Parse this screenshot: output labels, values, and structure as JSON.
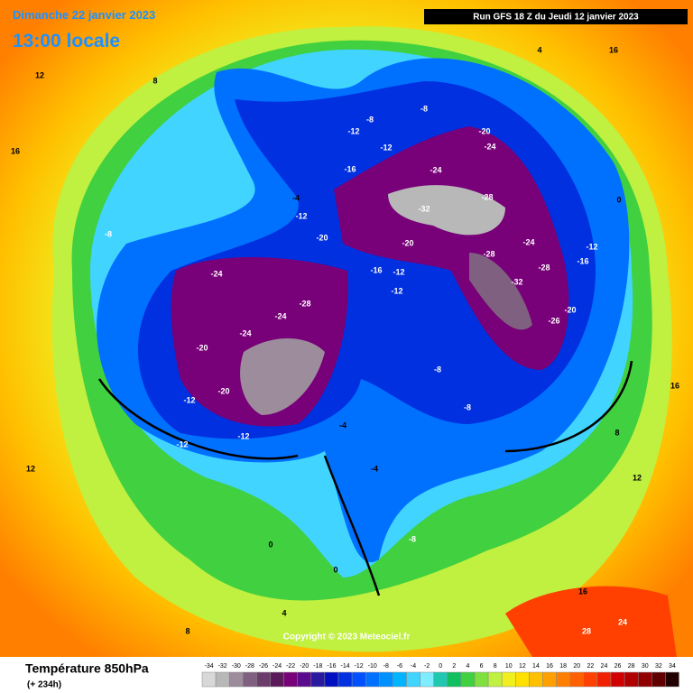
{
  "header": {
    "date": "Dimanche 22 janvier 2023",
    "time": "13:00 locale",
    "run": "Run GFS 18 Z du Jeudi 12 janvier 2023"
  },
  "copyright": "Copyright © 2023 Meteociel.fr",
  "legend": {
    "title": "Température 850hPa",
    "subtitle": "(+ 234h)",
    "stops": [
      {
        "value": -34,
        "color": "#d8d8d8"
      },
      {
        "value": -32,
        "color": "#b8b8b8"
      },
      {
        "value": -30,
        "color": "#9c8c9c"
      },
      {
        "value": -28,
        "color": "#806080"
      },
      {
        "value": -26,
        "color": "#6c3c6c"
      },
      {
        "value": -24,
        "color": "#5a1a5a"
      },
      {
        "value": -22,
        "color": "#780078"
      },
      {
        "value": -20,
        "color": "#5a0a8c"
      },
      {
        "value": -18,
        "color": "#2a1aa0"
      },
      {
        "value": -16,
        "color": "#0010c0"
      },
      {
        "value": -14,
        "color": "#0030e0"
      },
      {
        "value": -12,
        "color": "#0050ff"
      },
      {
        "value": -10,
        "color": "#0070ff"
      },
      {
        "value": -8,
        "color": "#0090ff"
      },
      {
        "value": -6,
        "color": "#00b4ff"
      },
      {
        "value": -4,
        "color": "#40d4ff"
      },
      {
        "value": -2,
        "color": "#80ecff"
      },
      {
        "value": 0,
        "color": "#20c8b0"
      },
      {
        "value": 2,
        "color": "#10c060"
      },
      {
        "value": 4,
        "color": "#40d040"
      },
      {
        "value": 6,
        "color": "#80e040"
      },
      {
        "value": 8,
        "color": "#c0f040"
      },
      {
        "value": 10,
        "color": "#f0f020"
      },
      {
        "value": 12,
        "color": "#ffe000"
      },
      {
        "value": 14,
        "color": "#ffc000"
      },
      {
        "value": 16,
        "color": "#ffa000"
      },
      {
        "value": 18,
        "color": "#ff8000"
      },
      {
        "value": 20,
        "color": "#ff6000"
      },
      {
        "value": 22,
        "color": "#ff4000"
      },
      {
        "value": 24,
        "color": "#f02000"
      },
      {
        "value": 26,
        "color": "#d00000"
      },
      {
        "value": 28,
        "color": "#b00000"
      },
      {
        "value": 30,
        "color": "#900000"
      },
      {
        "value": 32,
        "color": "#600000"
      },
      {
        "value": 34,
        "color": "#200000"
      }
    ]
  },
  "contour_labels": [
    -8,
    -8,
    -12,
    -12,
    -16,
    -20,
    -24,
    -24,
    -20,
    -20,
    -24,
    -24,
    -24,
    -28,
    -20,
    -20,
    -12,
    -12,
    -12,
    -16,
    -12,
    -12,
    -28,
    -32,
    -28,
    -24,
    -28,
    -32,
    -26,
    -20,
    -16,
    -12,
    -8,
    -8,
    -4,
    -4,
    -8,
    0,
    0,
    4,
    8,
    12,
    16,
    12,
    8,
    4,
    16,
    0,
    8,
    12,
    16,
    28,
    24,
    16,
    -4,
    -12,
    -8
  ]
}
